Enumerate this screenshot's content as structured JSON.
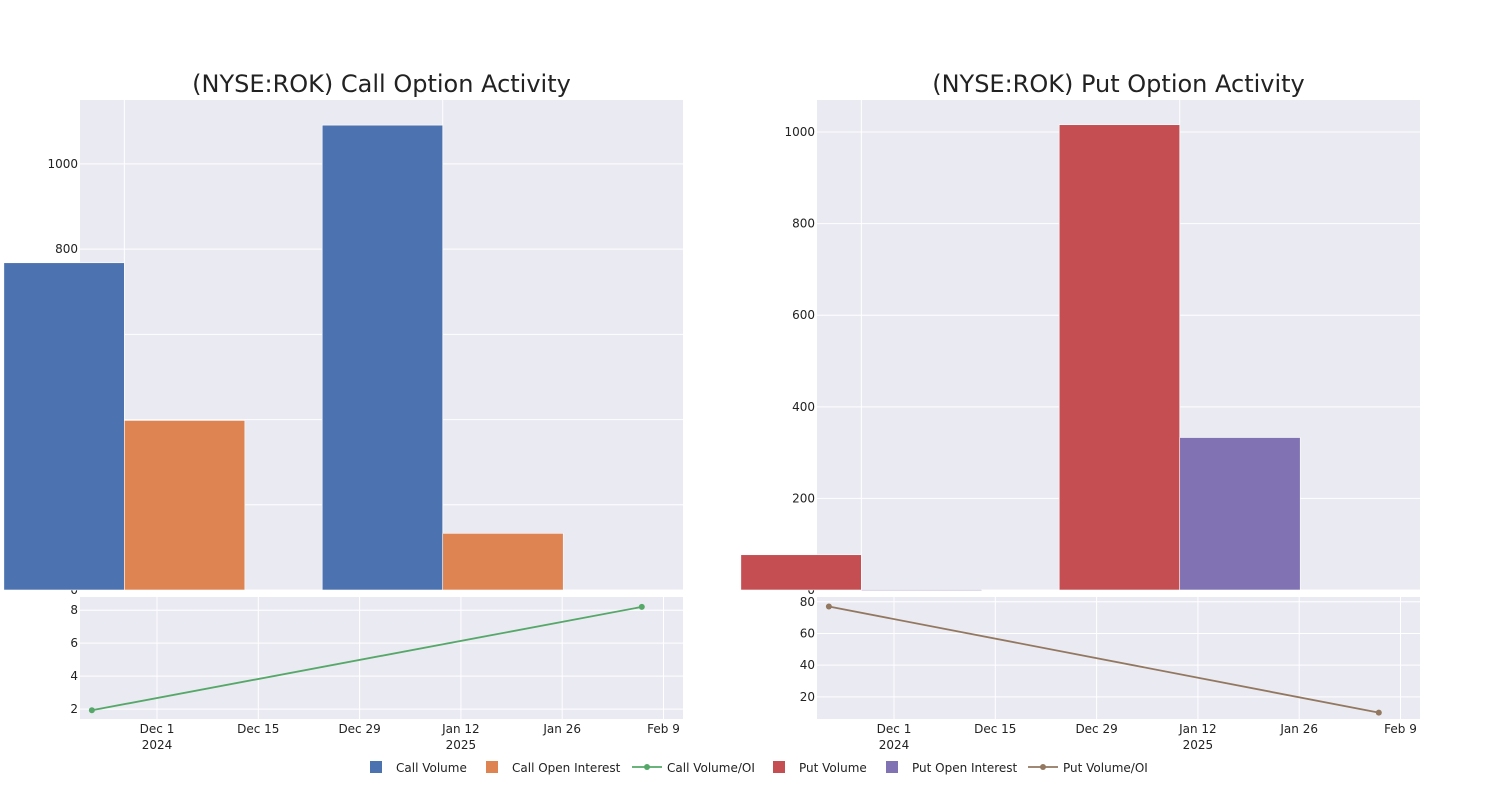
{
  "chart_data": [
    {
      "type": "bar",
      "title": "(NYSE:ROK) Call Option Activity",
      "x_ticks": [
        "Dec 1\n2024",
        "Dec 15",
        "Dec 29",
        "Jan 12\n2025",
        "Jan 26",
        "Feb 9"
      ],
      "bar_y_ticks": [
        "0",
        "200",
        "400",
        "600",
        "800",
        "1000"
      ],
      "bar_ylim": [
        0,
        1150
      ],
      "bar_groups": [
        {
          "x": "2024-11-24",
          "series": [
            {
              "name": "Call Volume",
              "value": 768
            },
            {
              "name": "Call Open Interest",
              "value": 398
            }
          ]
        },
        {
          "x": "2025-01-07",
          "series": [
            {
              "name": "Call Volume",
              "value": 1091
            },
            {
              "name": "Call Open Interest",
              "value": 133
            }
          ]
        }
      ],
      "line_y_ticks": [
        "2",
        "4",
        "6",
        "8"
      ],
      "line_ylim": [
        1.4,
        8.8
      ],
      "line_series": {
        "name": "Call Volume/OI",
        "points": [
          {
            "x": "2024-11-22",
            "y": 1.93
          },
          {
            "x": "2025-02-06",
            "y": 8.2
          }
        ]
      }
    },
    {
      "type": "bar",
      "title": "(NYSE:ROK) Put Option Activity",
      "x_ticks": [
        "Dec 1\n2024",
        "Dec 15",
        "Dec 29",
        "Jan 12\n2025",
        "Jan 26",
        "Feb 9"
      ],
      "bar_y_ticks": [
        "0",
        "200",
        "400",
        "600",
        "800",
        "1000"
      ],
      "bar_ylim": [
        0,
        1070
      ],
      "bar_groups": [
        {
          "x": "2024-11-24",
          "series": [
            {
              "name": "Put Volume",
              "value": 77
            },
            {
              "name": "Put Open Interest",
              "value": 1
            }
          ]
        },
        {
          "x": "2025-01-07",
          "series": [
            {
              "name": "Put Volume",
              "value": 1016
            },
            {
              "name": "Put Open Interest",
              "value": 333
            }
          ]
        }
      ],
      "line_y_ticks": [
        "20",
        "40",
        "60",
        "80"
      ],
      "line_ylim": [
        6,
        83
      ],
      "line_series": {
        "name": "Put Volume/OI",
        "points": [
          {
            "x": "2024-11-22",
            "y": 77
          },
          {
            "x": "2025-02-06",
            "y": 10
          }
        ]
      }
    }
  ],
  "legend": {
    "placement": "bottom-center",
    "items": [
      {
        "label": "Call Volume",
        "kind": "square",
        "color": "#4c72b0"
      },
      {
        "label": "Call Open Interest",
        "kind": "square",
        "color": "#dd8452"
      },
      {
        "label": "Call Volume/OI",
        "kind": "line",
        "color": "#55a868"
      },
      {
        "label": "Put Volume",
        "kind": "square",
        "color": "#c44e52"
      },
      {
        "label": "Put Open Interest",
        "kind": "square",
        "color": "#8172b3"
      },
      {
        "label": "Put Volume/OI",
        "kind": "line",
        "color": "#937860"
      }
    ]
  },
  "colors": {
    "plot_bg": "#eaeaf2",
    "grid": "#ffffff",
    "text": "#222222",
    "Call Volume": "#4c72b0",
    "Call Open Interest": "#dd8452",
    "Call Volume/OI": "#55a868",
    "Put Volume": "#c44e52",
    "Put Open Interest": "#8172b3",
    "Put Volume/OI": "#937860"
  }
}
